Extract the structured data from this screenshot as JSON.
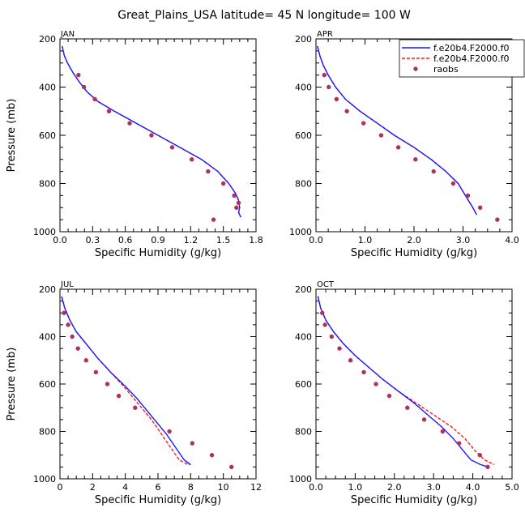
{
  "title": "Great_Plains_USA  latitude= 45 N longitude= 100 W",
  "legend": {
    "position": "top-right of APR panel",
    "entries": [
      {
        "label": "f.e20b4.F2000.f0",
        "color": "#1a1aff",
        "style": "solid"
      },
      {
        "label": "f.e20b4.F2000.f0",
        "color": "#ff1a1a",
        "style": "dashed"
      },
      {
        "label": "raobs",
        "color": "#b03060",
        "style": "marker"
      }
    ]
  },
  "chart_data": [
    {
      "type": "line",
      "panel": "JAN",
      "xlabel": "Specific Humidity (g/kg)",
      "ylabel": "Pressure (mb)",
      "xlim": [
        0,
        1.8
      ],
      "xticks": [
        0.0,
        0.3,
        0.6,
        0.9,
        1.2,
        1.5,
        1.8
      ],
      "xtick_labels": [
        "0.0",
        "0.3",
        "0.6",
        "0.9",
        "1.2",
        "1.5",
        "1.8"
      ],
      "ylim": [
        1000,
        200
      ],
      "yticks": [
        200,
        400,
        600,
        800,
        1000
      ],
      "series": [
        {
          "name": "f.e20b4.F2000.f0",
          "color": "#1a1aff",
          "dash": false,
          "x": [
            0.02,
            0.04,
            0.07,
            0.12,
            0.18,
            0.25,
            0.35,
            0.5,
            0.7,
            0.9,
            1.1,
            1.3,
            1.45,
            1.55,
            1.61,
            1.64,
            1.65,
            1.64,
            1.66
          ],
          "y": [
            230,
            270,
            300,
            340,
            380,
            420,
            460,
            500,
            550,
            600,
            650,
            700,
            750,
            800,
            840,
            870,
            900,
            920,
            940
          ]
        },
        {
          "name": "f.e20b4.F2000.f0",
          "color": "#ff1a1a",
          "dash": true,
          "x": [
            0.02,
            0.04,
            0.07,
            0.12,
            0.18,
            0.25,
            0.35,
            0.5,
            0.7,
            0.9,
            1.1,
            1.3,
            1.45,
            1.55,
            1.61,
            1.64,
            1.65,
            1.64,
            1.66
          ],
          "y": [
            230,
            270,
            300,
            340,
            380,
            420,
            460,
            500,
            550,
            600,
            650,
            700,
            750,
            800,
            840,
            870,
            900,
            920,
            940
          ]
        },
        {
          "name": "raobs",
          "color": "#b03060",
          "marker": true,
          "x": [
            0.17,
            0.22,
            0.32,
            0.45,
            0.64,
            0.84,
            1.03,
            1.21,
            1.36,
            1.5,
            1.6,
            1.64,
            1.62,
            1.41
          ],
          "y": [
            350,
            400,
            450,
            500,
            550,
            600,
            650,
            700,
            750,
            800,
            850,
            880,
            900,
            950
          ]
        }
      ]
    },
    {
      "type": "line",
      "panel": "APR",
      "xlabel": "Specific Humidity (g/kg)",
      "ylabel": "",
      "xlim": [
        0,
        4
      ],
      "xticks": [
        0,
        1,
        2,
        3,
        4
      ],
      "xtick_labels": [
        "0.0",
        "1.0",
        "2.0",
        "3.0",
        "4.0"
      ],
      "ylim": [
        1000,
        200
      ],
      "yticks": [
        200,
        400,
        600,
        800,
        1000
      ],
      "series": [
        {
          "name": "f.e20b4.F2000.f0",
          "color": "#1a1aff",
          "dash": false,
          "x": [
            0.03,
            0.08,
            0.15,
            0.25,
            0.4,
            0.6,
            0.9,
            1.25,
            1.6,
            2.0,
            2.35,
            2.65,
            2.9,
            3.05,
            3.2,
            3.28
          ],
          "y": [
            230,
            270,
            310,
            350,
            400,
            450,
            500,
            550,
            600,
            650,
            700,
            750,
            800,
            850,
            900,
            930
          ]
        },
        {
          "name": "f.e20b4.F2000.f0",
          "color": "#ff1a1a",
          "dash": true,
          "x": [
            0.03,
            0.08,
            0.15,
            0.25,
            0.4,
            0.6,
            0.9,
            1.25,
            1.6,
            2.0,
            2.35,
            2.65,
            2.9,
            3.05,
            3.2,
            3.28
          ],
          "y": [
            230,
            270,
            310,
            350,
            400,
            450,
            500,
            550,
            600,
            650,
            700,
            750,
            800,
            850,
            900,
            930
          ]
        },
        {
          "name": "raobs",
          "color": "#b03060",
          "marker": true,
          "x": [
            0.17,
            0.26,
            0.42,
            0.63,
            0.97,
            1.33,
            1.68,
            2.03,
            2.4,
            2.8,
            3.1,
            3.35,
            3.7
          ],
          "y": [
            350,
            400,
            450,
            500,
            550,
            600,
            650,
            700,
            750,
            800,
            850,
            900,
            950
          ]
        }
      ]
    },
    {
      "type": "line",
      "panel": "JUL",
      "xlabel": "Specific Humidity (g/kg)",
      "ylabel": "Pressure (mb)",
      "xlim": [
        0,
        12
      ],
      "xticks": [
        0,
        2,
        4,
        6,
        8,
        10,
        12
      ],
      "xtick_labels": [
        "0",
        "2",
        "4",
        "6",
        "8",
        "10",
        "12"
      ],
      "ylim": [
        1000,
        200
      ],
      "yticks": [
        200,
        400,
        600,
        800,
        1000
      ],
      "series": [
        {
          "name": "f.e20b4.F2000.f0",
          "color": "#1a1aff",
          "dash": false,
          "x": [
            0.1,
            0.3,
            0.6,
            1.0,
            1.6,
            2.3,
            3.1,
            4.0,
            4.7,
            5.3,
            5.9,
            6.5,
            7.1,
            7.6,
            8.0
          ],
          "y": [
            230,
            280,
            330,
            380,
            430,
            490,
            550,
            610,
            660,
            710,
            760,
            810,
            870,
            920,
            940
          ]
        },
        {
          "name": "f.e20b4.F2000.f0",
          "color": "#ff1a1a",
          "dash": true,
          "x": [
            0.1,
            0.3,
            0.6,
            1.0,
            1.6,
            2.3,
            3.1,
            3.9,
            4.5,
            5.0,
            5.6,
            6.2,
            6.8,
            7.3,
            7.7,
            8.0
          ],
          "y": [
            230,
            280,
            330,
            380,
            430,
            490,
            550,
            610,
            660,
            700,
            750,
            810,
            870,
            920,
            935,
            940
          ]
        },
        {
          "name": "raobs",
          "color": "#b03060",
          "marker": true,
          "x": [
            0.25,
            0.5,
            0.75,
            1.1,
            1.6,
            2.2,
            2.9,
            3.6,
            4.6,
            6.7,
            8.1,
            9.3,
            10.5
          ],
          "y": [
            300,
            350,
            400,
            450,
            500,
            550,
            600,
            650,
            700,
            800,
            850,
            900,
            950
          ]
        }
      ]
    },
    {
      "type": "line",
      "panel": "OCT",
      "xlabel": "Specific Humidity (g/kg)",
      "ylabel": "",
      "xlim": [
        0,
        5
      ],
      "xticks": [
        0,
        1,
        2,
        3,
        4,
        5
      ],
      "xtick_labels": [
        "0.0",
        "1.0",
        "2.0",
        "3.0",
        "4.0",
        "5.0"
      ],
      "ylim": [
        1000,
        200
      ],
      "yticks": [
        200,
        400,
        600,
        800,
        1000
      ],
      "series": [
        {
          "name": "f.e20b4.F2000.f0",
          "color": "#1a1aff",
          "dash": false,
          "x": [
            0.05,
            0.12,
            0.25,
            0.45,
            0.7,
            1.0,
            1.35,
            1.7,
            2.1,
            2.5,
            2.85,
            3.2,
            3.5,
            3.75,
            3.95,
            4.2,
            4.4
          ],
          "y": [
            230,
            280,
            330,
            380,
            430,
            480,
            530,
            580,
            630,
            680,
            730,
            780,
            830,
            880,
            920,
            940,
            950
          ]
        },
        {
          "name": "f.e20b4.F2000.f0",
          "color": "#ff1a1a",
          "dash": true,
          "x": [
            0.05,
            0.12,
            0.25,
            0.45,
            0.7,
            1.0,
            1.35,
            1.7,
            2.1,
            2.55,
            3.0,
            3.45,
            3.8,
            4.05,
            4.3,
            4.55
          ],
          "y": [
            230,
            280,
            330,
            380,
            430,
            480,
            530,
            580,
            630,
            680,
            730,
            780,
            830,
            880,
            920,
            940
          ]
        },
        {
          "name": "raobs",
          "color": "#b03060",
          "marker": true,
          "x": [
            0.16,
            0.23,
            0.4,
            0.6,
            0.88,
            1.22,
            1.53,
            1.87,
            2.33,
            2.76,
            3.23,
            3.65,
            4.18,
            4.38
          ],
          "y": [
            300,
            350,
            400,
            450,
            500,
            550,
            600,
            650,
            700,
            750,
            800,
            850,
            900,
            950
          ]
        }
      ]
    }
  ]
}
